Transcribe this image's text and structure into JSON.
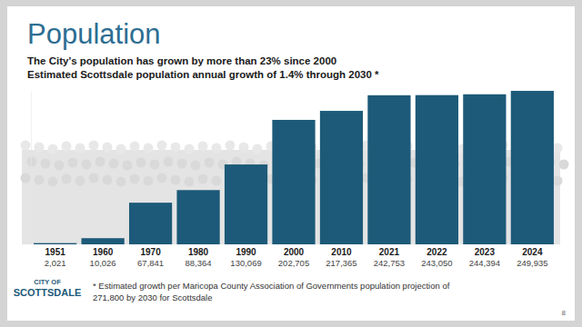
{
  "chart_data": {
    "type": "bar",
    "title": "Population",
    "subtitle": [
      "The City’s population has grown by more than 23% since 2000",
      "Estimated Scottsdale population annual growth of 1.4% through 2030 *"
    ],
    "categories": [
      "1951",
      "1960",
      "1970",
      "1980",
      "1990",
      "2000",
      "2010",
      "2021",
      "2022",
      "2023",
      "2024"
    ],
    "values": [
      2021,
      10026,
      67841,
      88364,
      130069,
      202705,
      217365,
      242753,
      243050,
      244394,
      249935
    ],
    "value_labels": [
      "2,021",
      "10,026",
      "67,841",
      "88,364",
      "130,069",
      "202,705",
      "217,365",
      "242,753",
      "243,050",
      "244,394",
      "249,935"
    ],
    "data_labels": true,
    "color": "#1d5a79",
    "ylim": [
      0,
      250000
    ],
    "tick_labels": "x",
    "grid": false,
    "footnote": [
      "* Estimated growth per Maricopa County Association of Governments population projection of",
      "271,800 by 2030 for Scottsdale"
    ],
    "logo": [
      "CITY OF",
      "SCOTTSDALE"
    ],
    "page_number": "8"
  }
}
